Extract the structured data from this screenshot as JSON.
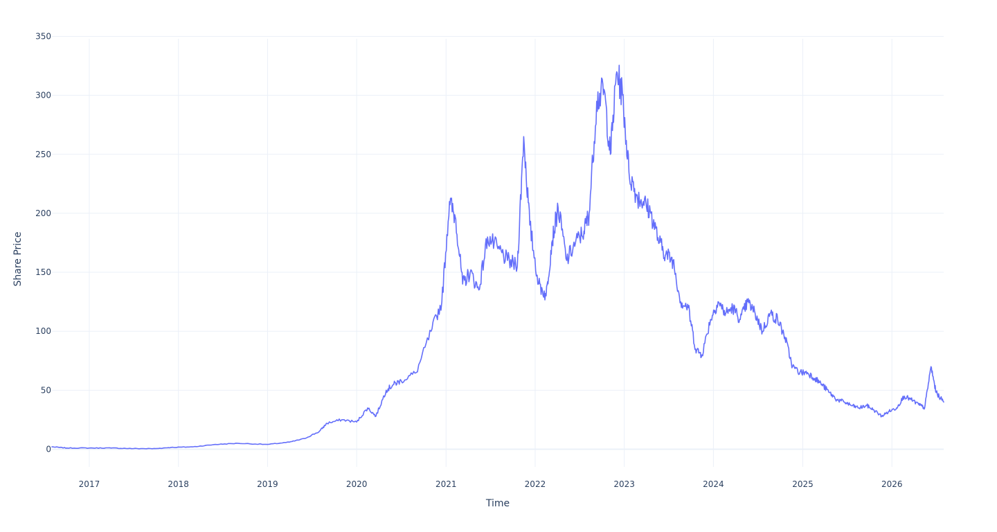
{
  "chart_data": {
    "type": "line",
    "title": "",
    "xlabel": "Time",
    "ylabel": "Share Price",
    "x_ticks": [
      "2017",
      "2018",
      "2019",
      "2020",
      "2021",
      "2022",
      "2023",
      "2024",
      "2025",
      "2026"
    ],
    "y_ticks": [
      "0",
      "50",
      "100",
      "150",
      "200",
      "250",
      "300",
      "350"
    ],
    "xlim": [
      "2016-08-01",
      "2026-08-01"
    ],
    "ylim": [
      -15,
      355
    ],
    "grid": true,
    "legend": "none",
    "series_color": "#636efa",
    "series": [
      {
        "x": [
          "2016-08-01",
          "2016-10-01",
          "2017-01-01",
          "2017-04-01",
          "2017-07-01",
          "2017-10-01",
          "2017-12-01",
          "2018-03-01",
          "2018-06-01",
          "2018-09-01",
          "2019-01-01",
          "2019-04-01",
          "2019-06-01",
          "2019-08-01",
          "2019-09-01",
          "2019-11-01",
          "2020-01-01",
          "2020-02-15",
          "2020-03-20",
          "2020-05-01",
          "2020-06-01",
          "2020-07-01",
          "2020-09-01",
          "2020-11-01",
          "2020-12-15",
          "2021-01-15",
          "2021-02-10",
          "2021-03-10",
          "2021-04-10",
          "2021-05-15",
          "2021-06-20",
          "2021-08-01",
          "2021-09-10",
          "2021-10-20",
          "2021-11-15",
          "2021-12-10",
          "2022-01-15",
          "2022-02-15",
          "2022-03-10",
          "2022-04-05",
          "2022-05-10",
          "2022-06-15",
          "2022-07-20",
          "2022-08-10",
          "2022-09-10",
          "2022-10-10",
          "2022-11-05",
          "2022-12-01",
          "2022-12-25",
          "2023-01-20",
          "2023-02-20",
          "2023-03-20",
          "2023-04-20",
          "2023-05-25",
          "2023-06-20",
          "2023-07-20",
          "2023-08-20",
          "2023-09-20",
          "2023-10-20",
          "2023-11-15",
          "2023-12-20",
          "2024-01-20",
          "2024-02-20",
          "2024-03-20",
          "2024-04-20",
          "2024-05-20",
          "2024-06-20",
          "2024-07-20",
          "2024-08-20",
          "2024-09-20",
          "2024-10-20",
          "2024-11-20",
          "2024-12-20",
          "2025-01-20",
          "2025-02-20",
          "2025-03-20",
          "2025-04-20",
          "2025-05-20",
          "2025-06-20",
          "2025-07-20",
          "2025-08-20",
          "2025-09-20",
          "2025-10-20",
          "2025-11-20",
          "2025-12-20",
          "2026-01-20",
          "2026-02-20",
          "2026-03-20",
          "2026-04-20",
          "2026-05-15",
          "2026-06-10",
          "2026-07-01",
          "2026-08-01"
        ],
        "y": [
          2,
          1,
          1,
          1,
          0.5,
          0.5,
          1.5,
          2,
          4,
          5,
          4,
          6,
          9,
          15,
          22,
          25,
          23,
          35,
          28,
          50,
          55,
          58,
          65,
          100,
          125,
          210,
          195,
          140,
          150,
          135,
          180,
          170,
          160,
          155,
          265,
          190,
          140,
          130,
          175,
          205,
          160,
          175,
          185,
          200,
          295,
          305,
          250,
          320,
          300,
          235,
          215,
          210,
          200,
          175,
          165,
          160,
          125,
          120,
          85,
          80,
          110,
          125,
          115,
          120,
          110,
          125,
          115,
          100,
          115,
          110,
          95,
          70,
          65,
          65,
          60,
          55,
          48,
          42,
          40,
          37,
          35,
          37,
          33,
          28,
          32,
          35,
          45,
          42,
          38,
          35,
          70,
          48,
          40
        ]
      }
    ]
  }
}
